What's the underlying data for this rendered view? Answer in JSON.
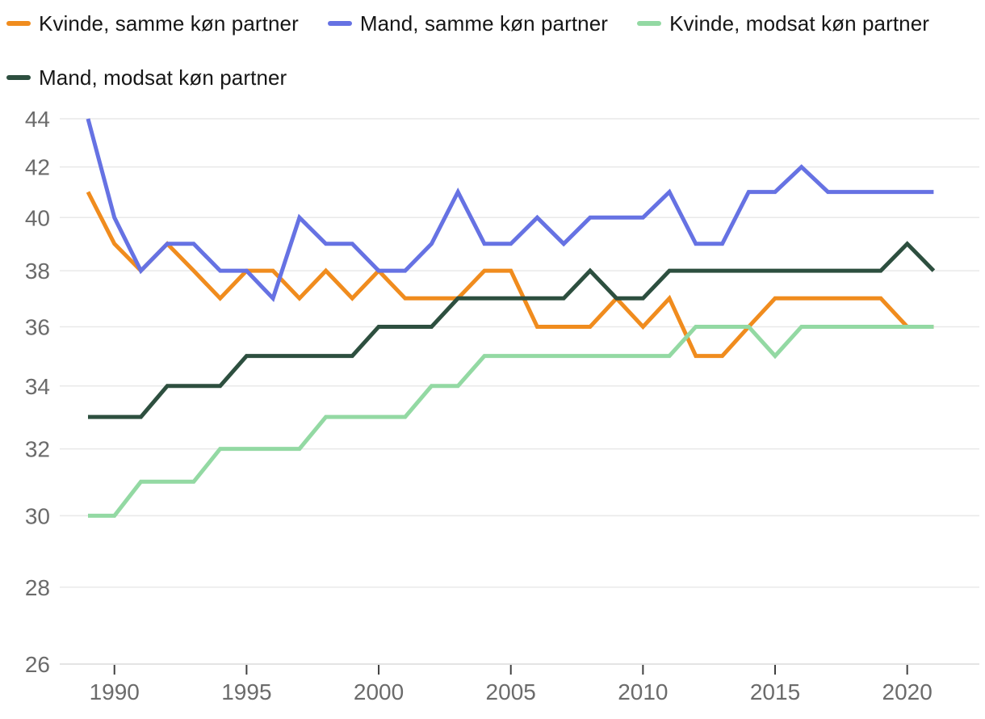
{
  "chart_data": {
    "type": "line",
    "title": "",
    "x": [
      1989,
      1990,
      1991,
      1992,
      1993,
      1994,
      1995,
      1996,
      1997,
      1998,
      1999,
      2000,
      2001,
      2002,
      2003,
      2004,
      2005,
      2006,
      2007,
      2008,
      2009,
      2010,
      2011,
      2012,
      2013,
      2014,
      2015,
      2016,
      2017,
      2018,
      2019,
      2020,
      2021
    ],
    "x_ticks": [
      1990,
      1995,
      2000,
      2005,
      2010,
      2015,
      2020
    ],
    "y_axis": {
      "min": 26,
      "max": 44,
      "step": 2,
      "scale": "log",
      "grid": true,
      "tick_labels": [
        "26",
        "28",
        "30",
        "32",
        "34",
        "36",
        "38",
        "40",
        "42",
        "44"
      ]
    },
    "legend_position": "top",
    "series": [
      {
        "name": "Kvinde, samme køn partner",
        "color": "#F08C1E",
        "values": [
          41,
          39,
          38,
          39,
          38,
          37,
          38,
          38,
          37,
          38,
          37,
          38,
          37,
          37,
          37,
          38,
          38,
          36,
          36,
          36,
          37,
          36,
          37,
          35,
          35,
          36,
          37,
          37,
          37,
          37,
          37,
          36,
          36
        ]
      },
      {
        "name": "Mand, samme køn partner",
        "color": "#6672E3",
        "values": [
          44,
          40,
          38,
          39,
          39,
          38,
          38,
          37,
          40,
          39,
          39,
          38,
          38,
          39,
          41,
          39,
          39,
          40,
          39,
          40,
          40,
          40,
          41,
          39,
          39,
          41,
          41,
          42,
          41,
          41,
          41,
          41,
          41
        ]
      },
      {
        "name": "Kvinde, modsat køn partner",
        "color": "#93D9A3",
        "values": [
          30,
          30,
          31,
          31,
          31,
          32,
          32,
          32,
          32,
          33,
          33,
          33,
          33,
          34,
          34,
          35,
          35,
          35,
          35,
          35,
          35,
          35,
          35,
          36,
          36,
          36,
          35,
          36,
          36,
          36,
          36,
          36,
          36
        ]
      },
      {
        "name": "Mand, modsat køn partner",
        "color": "#2D4F3F",
        "values": [
          33,
          33,
          33,
          34,
          34,
          34,
          35,
          35,
          35,
          35,
          35,
          36,
          36,
          36,
          37,
          37,
          37,
          37,
          37,
          38,
          37,
          37,
          38,
          38,
          38,
          38,
          38,
          38,
          38,
          38,
          38,
          39,
          38
        ]
      }
    ]
  },
  "colors": {
    "grid": "#E9E9E9",
    "baseline": "#DBDBDB",
    "tick": "#404040",
    "axis_label": "#6B6B6B",
    "legend_text": "#161616",
    "background": "#FFFFFF"
  }
}
